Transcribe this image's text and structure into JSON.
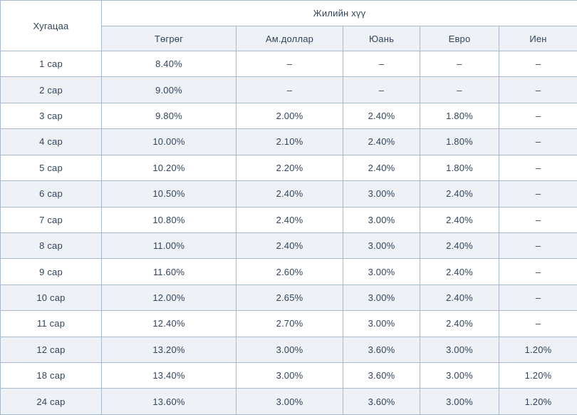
{
  "colors": {
    "border": "#aab9ca",
    "alt_row_bg": "#eef1f6",
    "text": "#33455c",
    "bg": "#ffffff"
  },
  "table": {
    "corner_header": "Хугацаа",
    "group_header": "Жилийн хүү",
    "currency_headers": [
      "Төгрөг",
      "Ам.доллар",
      "Юань",
      "Евро",
      "Иен"
    ],
    "empty_value": "–",
    "rows": [
      {
        "period": "1 сар",
        "values": [
          "8.40%",
          "–",
          "–",
          "–",
          "–"
        ]
      },
      {
        "period": "2 сар",
        "values": [
          "9.00%",
          "–",
          "–",
          "–",
          "–"
        ]
      },
      {
        "period": "3 сар",
        "values": [
          "9.80%",
          "2.00%",
          "2.40%",
          "1.80%",
          "–"
        ]
      },
      {
        "period": "4 сар",
        "values": [
          "10.00%",
          "2.10%",
          "2.40%",
          "1.80%",
          "–"
        ]
      },
      {
        "period": "5 сар",
        "values": [
          "10.20%",
          "2.20%",
          "2.40%",
          "1.80%",
          "–"
        ]
      },
      {
        "period": "6 сар",
        "values": [
          "10.50%",
          "2.40%",
          "3.00%",
          "2.40%",
          "–"
        ]
      },
      {
        "period": "7 сар",
        "values": [
          "10.80%",
          "2.40%",
          "3.00%",
          "2.40%",
          "–"
        ]
      },
      {
        "period": "8 сар",
        "values": [
          "11.00%",
          "2.40%",
          "3.00%",
          "2.40%",
          "–"
        ]
      },
      {
        "period": "9 сар",
        "values": [
          "11.60%",
          "2.60%",
          "3.00%",
          "2.40%",
          "–"
        ]
      },
      {
        "period": "10 сар",
        "values": [
          "12.00%",
          "2.65%",
          "3.00%",
          "2.40%",
          "–"
        ]
      },
      {
        "period": "11 сар",
        "values": [
          "12.40%",
          "2.70%",
          "3.00%",
          "2.40%",
          "–"
        ]
      },
      {
        "period": "12 сар",
        "values": [
          "13.20%",
          "3.00%",
          "3.60%",
          "3.00%",
          "1.20%"
        ]
      },
      {
        "period": "18 сар",
        "values": [
          "13.40%",
          "3.00%",
          "3.60%",
          "3.00%",
          "1.20%"
        ]
      },
      {
        "period": "24 сар",
        "values": [
          "13.60%",
          "3.00%",
          "3.60%",
          "3.00%",
          "1.20%"
        ]
      }
    ]
  }
}
